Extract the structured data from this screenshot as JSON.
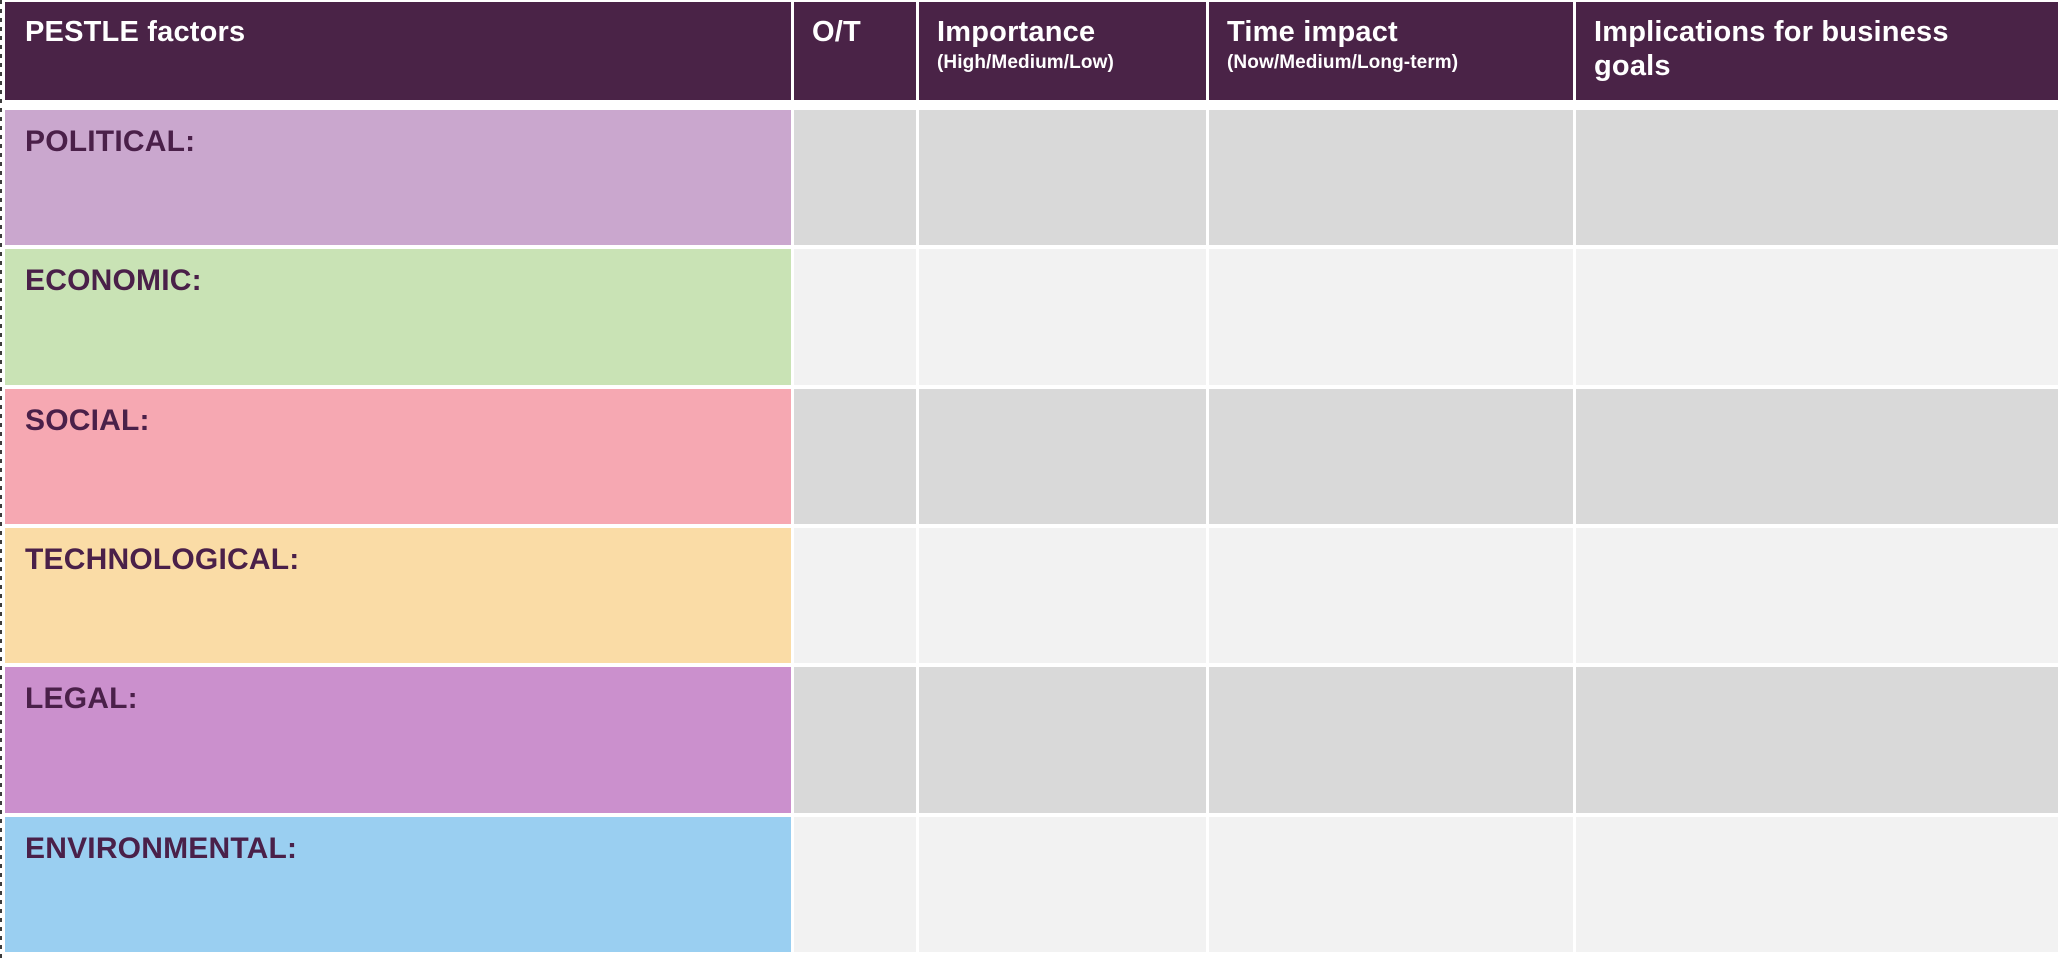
{
  "table": {
    "header": {
      "bg": "#4A2347",
      "text_color": "#FFFFFF",
      "columns": [
        {
          "label": "PESTLE factors",
          "sub": ""
        },
        {
          "label": "O/T",
          "sub": ""
        },
        {
          "label": "Importance",
          "sub": "(High/Medium/Low)"
        },
        {
          "label": "Time impact",
          "sub": "(Now/Medium/Long-term)"
        },
        {
          "label": "Implications for business goals",
          "sub": ""
        }
      ]
    },
    "label_text_color": "#4A2049",
    "rows": [
      {
        "label": "POLITICAL:",
        "color": "#CAA7CE",
        "cell_bg": "#D9D9D9",
        "cells": [
          "",
          "",
          "",
          ""
        ]
      },
      {
        "label": "ECONOMIC:",
        "color": "#C9E3B5",
        "cell_bg": "#F2F2F2",
        "cells": [
          "",
          "",
          "",
          ""
        ]
      },
      {
        "label": "SOCIAL:",
        "color": "#F6A8B2",
        "cell_bg": "#D9D9D9",
        "cells": [
          "",
          "",
          "",
          ""
        ]
      },
      {
        "label": "TECHNOLOGICAL:",
        "color": "#FADCA6",
        "cell_bg": "#F2F2F2",
        "cells": [
          "",
          "",
          "",
          ""
        ]
      },
      {
        "label": "LEGAL:",
        "color": "#CB90CD",
        "cell_bg": "#D9D9D9",
        "cells": [
          "",
          "",
          "",
          ""
        ]
      },
      {
        "label": "ENVIRONMENTAL:",
        "color": "#9ACFF1",
        "cell_bg": "#F2F2F2",
        "cells": [
          "",
          "",
          "",
          ""
        ]
      }
    ]
  }
}
